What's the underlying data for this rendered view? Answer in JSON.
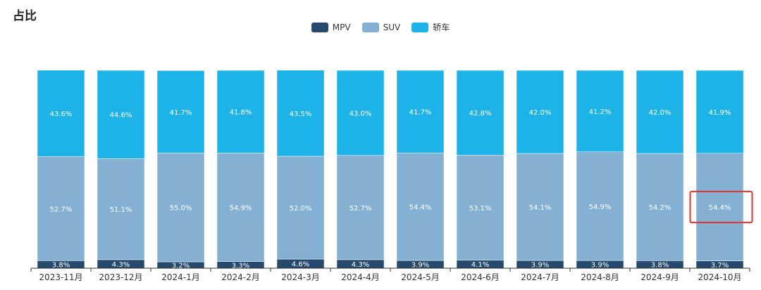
{
  "page": {
    "title": "占比"
  },
  "chart_data": {
    "type": "bar",
    "stacked": true,
    "categories": [
      "2023-11月",
      "2023-12月",
      "2024-1月",
      "2024-2月",
      "2024-3月",
      "2024-4月",
      "2024-5月",
      "2024-6月",
      "2024-7月",
      "2024-8月",
      "2024-9月",
      "2024-10月"
    ],
    "series": [
      {
        "name": "MPV",
        "color": "#264a6e",
        "values": [
          3.8,
          4.3,
          3.2,
          3.3,
          4.6,
          4.3,
          3.9,
          4.1,
          3.9,
          3.9,
          3.8,
          3.7
        ],
        "labels": [
          "3.8%",
          "4.3%",
          "3.2%",
          "3.3%",
          "4.6%",
          "4.3%",
          "3.9%",
          "4.1%",
          "3.9%",
          "3.9%",
          "3.8%",
          "3.7%"
        ]
      },
      {
        "name": "SUV",
        "color": "#84b1d3",
        "values": [
          52.7,
          51.1,
          55.0,
          54.9,
          52.0,
          52.7,
          54.4,
          53.1,
          54.1,
          54.9,
          54.2,
          54.4
        ],
        "labels": [
          "52.7%",
          "51.1%",
          "55.0%",
          "54.9%",
          "52.0%",
          "52.7%",
          "54.4%",
          "53.1%",
          "54.1%",
          "54.9%",
          "54.2%",
          "54.4%"
        ]
      },
      {
        "name": "轿车",
        "color": "#1db3e8",
        "values": [
          43.6,
          44.6,
          41.7,
          41.8,
          43.5,
          43.0,
          41.7,
          42.8,
          42.0,
          41.2,
          42.0,
          41.9
        ],
        "labels": [
          "43.6%",
          "44.6%",
          "41.7%",
          "41.8%",
          "43.5%",
          "43.0%",
          "41.7%",
          "42.8%",
          "42.0%",
          "41.2%",
          "42.0%",
          "41.9%"
        ]
      }
    ],
    "ylim": [
      0,
      100
    ],
    "grid": false,
    "legend_position": "top-center",
    "annotations": [
      {
        "type": "highlight-box",
        "category_index": 11,
        "series_index": 1,
        "color": "#e5322d"
      }
    ]
  }
}
